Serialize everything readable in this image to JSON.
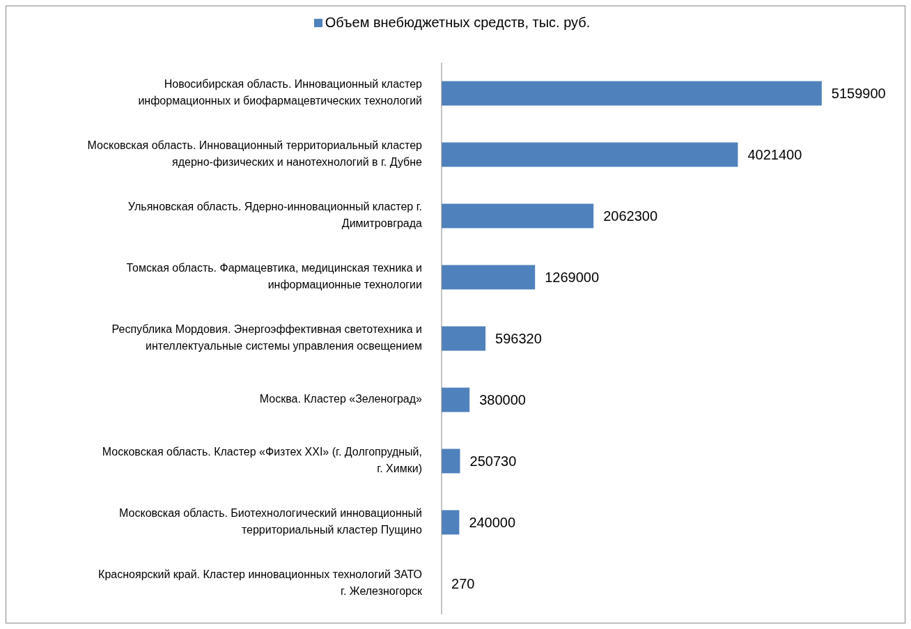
{
  "chart_data": {
    "type": "bar",
    "orientation": "horizontal",
    "categories": [
      "Новосибирская область. Инновационный кластер информационных и биофармацевтических технологий",
      "Московская область. Инновационный территориальный кластер ядерно-физических и нанотехнологий в г. Дубне",
      "Ульяновская область. Ядерно-инновационный кластер г. Димитровграда",
      "Томская область. Фармацевтика, медицинская техника и информационные технологии",
      "Республика Мордовия. Энергоэффективная светотехника и интеллектуальные системы управления освещением",
      "Москва. Кластер «Зеленоград»",
      "Московская область. Кластер «Физтех XXI» (г. Долгопрудный, г. Химки)",
      "Московская область. Биотехнологический инновационный территориальный кластер Пущино",
      "Красноярский край. Кластер инновационных технологий ЗАТО г. Железногорск"
    ],
    "series": [
      {
        "name": "Объем внебюджетных средств, тыс. руб.",
        "color": "#4f81bd",
        "values": [
          5159900,
          4021400,
          2062300,
          1269000,
          596320,
          380000,
          250730,
          240000,
          270
        ]
      }
    ],
    "data_labels": true,
    "legend": "top",
    "tick_labels": "y"
  }
}
